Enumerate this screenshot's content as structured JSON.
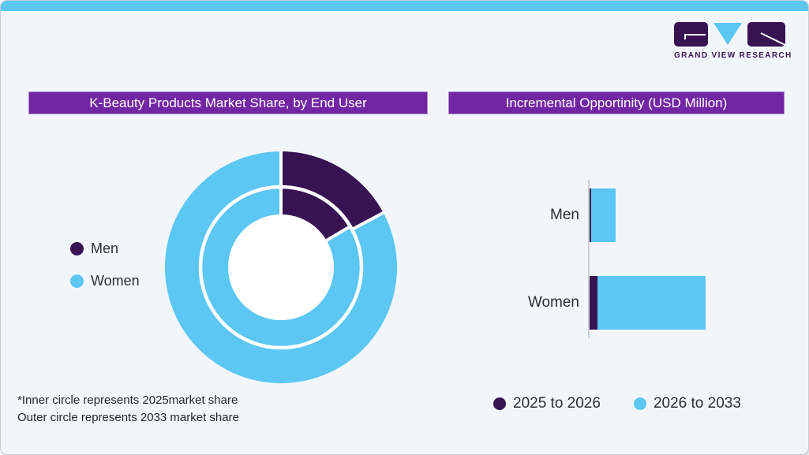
{
  "brand": {
    "name": "GRAND VIEW RESEARCH"
  },
  "footnote": {
    "line1": "*Inner circle represents 2025market share",
    "line2": "Outer circle represents 2033 market share"
  },
  "theme": {
    "accent_cyan": "#5BC7F2",
    "accent_purple_header": "#7326A3",
    "dark_purple": "#371353",
    "light_blue": "#5BC7F2",
    "card_background": "#F2F6FA",
    "axis_gray": "#CBCFD4",
    "text_dark": "#2E2D38"
  },
  "chart_data": [
    {
      "type": "pie",
      "subtype": "double-ring-donut",
      "title": "K-Beauty Products Market Share, by End User",
      "categories": [
        "Men",
        "Women"
      ],
      "series": [
        {
          "name": "2025 market share (inner circle)",
          "values": [
            16.5,
            83.5
          ]
        },
        {
          "name": "2033 market share (outer circle)",
          "values": [
            17.2,
            82.8
          ]
        }
      ],
      "colors": [
        "#371353",
        "#5BC7F2"
      ],
      "legend_position": "left",
      "units": "percent",
      "note": "no numeric labels shown; shares estimated from arc angles"
    },
    {
      "type": "bar",
      "orientation": "horizontal",
      "stacked": true,
      "title": "Incremental Opportinity (USD Million)",
      "categories": [
        "Men",
        "Women"
      ],
      "series": [
        {
          "name": "2025 to 2026",
          "values": [
            2,
            10
          ]
        },
        {
          "name": "2026 to 2033",
          "values": [
            31,
            137
          ]
        }
      ],
      "colors": [
        "#371353",
        "#5BC7F2"
      ],
      "legend_position": "bottom",
      "xlabel": "",
      "ylabel": "",
      "note": "axis has no tick labels; values are relative units estimated from bar lengths"
    }
  ]
}
